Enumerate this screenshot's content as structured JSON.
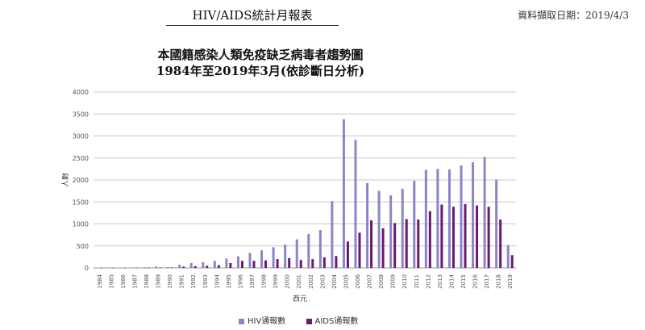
{
  "header": {
    "report_title": "HIV/AIDS統計月報表",
    "data_date": "資料擷取日期：2019/4/3"
  },
  "chart_data": {
    "type": "bar",
    "title_line1": "本國籍感染人類免疫缺乏病毒者趨勢圖",
    "title_line2": "1984年至2019年3月(依診斷日分析)",
    "xlabel": "西元",
    "ylabel": "人數",
    "ylim": [
      0,
      4000
    ],
    "yticks": [
      0,
      500,
      1000,
      1500,
      2000,
      2500,
      3000,
      3500,
      4000
    ],
    "grid": "horizontal",
    "legend_position": "bottom",
    "categories": [
      "1984",
      "1985",
      "1986",
      "1987",
      "1988",
      "1989",
      "1990",
      "1991",
      "1992",
      "1993",
      "1994",
      "1995",
      "1996",
      "1997",
      "1998",
      "1999",
      "2000",
      "2001",
      "2002",
      "2003",
      "2004",
      "2005",
      "2006",
      "2007",
      "2008",
      "2009",
      "2010",
      "2011",
      "2012",
      "2013",
      "2014",
      "2015",
      "2016",
      "2017",
      "2018",
      "2019"
    ],
    "series": [
      {
        "name": "HIV通報數",
        "color": "#8c84c8",
        "values": [
          2,
          10,
          6,
          8,
          15,
          30,
          20,
          70,
          110,
          130,
          160,
          210,
          260,
          340,
          400,
          470,
          530,
          650,
          770,
          860,
          1520,
          3380,
          2910,
          1930,
          1750,
          1650,
          1800,
          1980,
          2230,
          2250,
          2240,
          2330,
          2400,
          2520,
          2010,
          520
        ]
      },
      {
        "name": "AIDS通報數",
        "color": "#6a1a6e",
        "values": [
          1,
          2,
          2,
          3,
          6,
          10,
          12,
          30,
          40,
          50,
          60,
          110,
          160,
          160,
          170,
          200,
          220,
          180,
          200,
          240,
          270,
          600,
          800,
          1080,
          900,
          1020,
          1110,
          1100,
          1290,
          1440,
          1390,
          1450,
          1420,
          1390,
          1100,
          290
        ]
      }
    ]
  }
}
